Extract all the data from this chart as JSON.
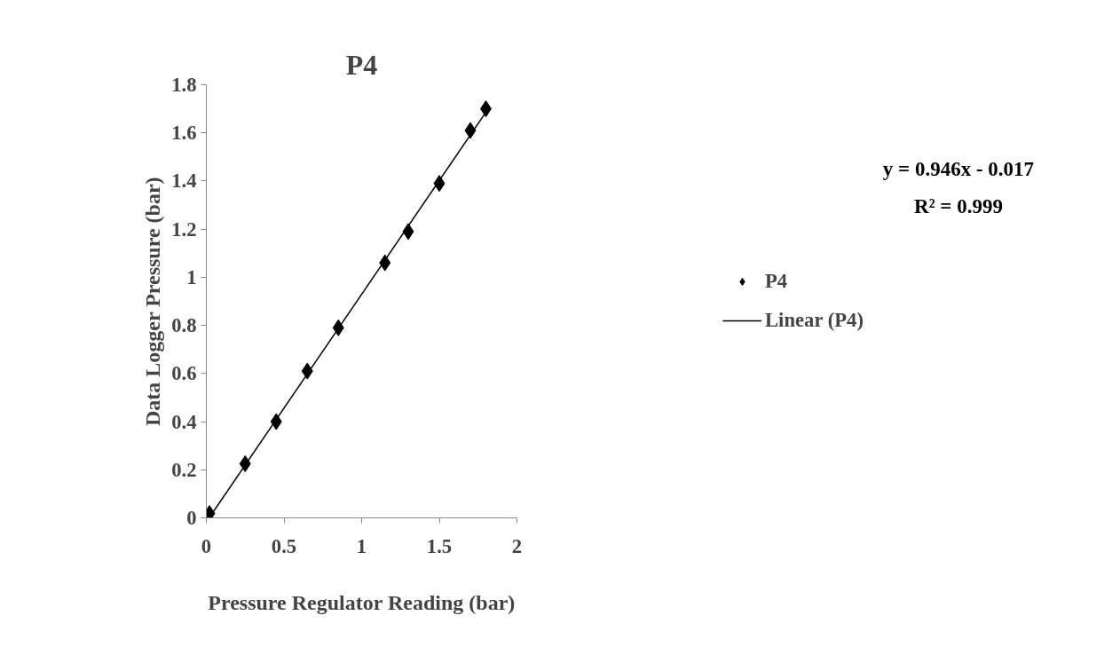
{
  "chart_data": {
    "type": "scatter",
    "title": "P4",
    "xlabel": "Pressure Regulator Reading (bar)",
    "ylabel": "Data Logger Pressure (bar)",
    "x": [
      0.02,
      0.25,
      0.45,
      0.65,
      0.85,
      1.15,
      1.3,
      1.5,
      1.7,
      1.8
    ],
    "series": [
      {
        "name": "P4",
        "color": "#000000",
        "marker": "diamond",
        "values": [
          0.018,
          0.225,
          0.4,
          0.61,
          0.79,
          1.06,
          1.19,
          1.39,
          1.61,
          1.7
        ]
      },
      {
        "name": "Linear (P4)",
        "type": "line",
        "color": "#000000",
        "line_style": "solid",
        "x": [
          0.02,
          1.8
        ],
        "values": [
          0.002,
          1.686
        ]
      }
    ],
    "annotations": [
      "y = 0.946x - 0.017",
      "R² = 0.999"
    ],
    "xlim": [
      0,
      2
    ],
    "ylim": [
      0,
      1.8
    ],
    "xticks": [
      0,
      0.5,
      1,
      1.5,
      2
    ],
    "yticks": [
      0,
      0.2,
      0.4,
      0.6,
      0.8,
      1,
      1.2,
      1.4,
      1.6,
      1.8
    ],
    "grid": false,
    "legend": "right"
  }
}
